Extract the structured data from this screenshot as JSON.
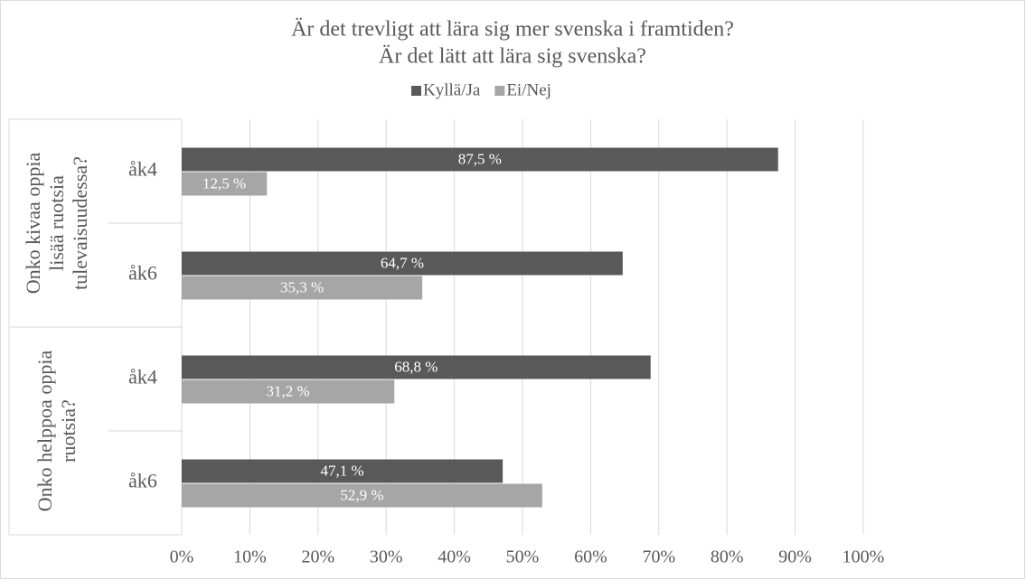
{
  "chart_data": {
    "type": "bar",
    "title": [
      "Är det trevligt att lära sig mer svenska i framtiden?",
      "Är det lätt att lära sig svenska?"
    ],
    "groups": [
      {
        "name": [
          "Onko kivaa oppia",
          "lisää ruotsia",
          "tulevaisuudessa?"
        ],
        "categories": [
          "åk4",
          "åk6"
        ]
      },
      {
        "name": [
          "Onko helppoa oppia",
          "ruotsia?"
        ],
        "categories": [
          "åk4",
          "åk6"
        ]
      }
    ],
    "series": [
      {
        "name": "Kyllä/Ja",
        "color": "#595959",
        "values": [
          87.5,
          64.7,
          68.8,
          47.1
        ],
        "value_labels": [
          "87,5 %",
          "64,7 %",
          "68,8 %",
          "47,1 %"
        ]
      },
      {
        "name": "Ei/Nej",
        "color": "#a6a6a6",
        "values": [
          12.5,
          35.3,
          31.2,
          52.9
        ],
        "value_labels": [
          "12,5 %",
          "35,3 %",
          "31,2 %",
          "52,9 %"
        ]
      }
    ],
    "xlim": [
      0,
      100
    ],
    "xticks": [
      {
        "value": 0,
        "label": "0%"
      },
      {
        "value": 10,
        "label": "10%"
      },
      {
        "value": 20,
        "label": "20%"
      },
      {
        "value": 30,
        "label": "30%"
      },
      {
        "value": 40,
        "label": "40%"
      },
      {
        "value": 50,
        "label": "50%"
      },
      {
        "value": 60,
        "label": "60%"
      },
      {
        "value": 70,
        "label": "70%"
      },
      {
        "value": 80,
        "label": "80%"
      },
      {
        "value": 90,
        "label": "90%"
      },
      {
        "value": 100,
        "label": "100%"
      }
    ],
    "grid": true,
    "legend": "top"
  }
}
